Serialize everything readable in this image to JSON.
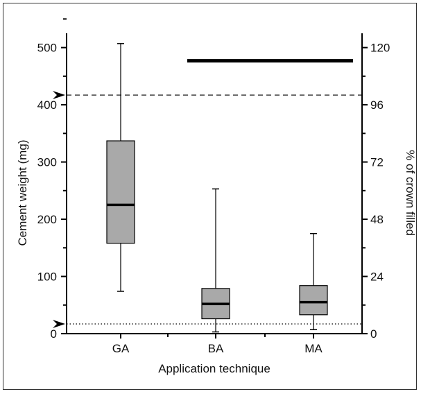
{
  "chart_data": {
    "type": "box",
    "title": "",
    "xlabel": "Application technique",
    "ylabel": "Cement weight (mg)",
    "y2label": "% of crown filled",
    "categories": [
      "GA",
      "BA",
      "MA"
    ],
    "ylim": [
      0,
      520
    ],
    "y2lim": [
      0,
      124.8
    ],
    "yticks": [
      0,
      100,
      200,
      300,
      400,
      500
    ],
    "y2ticks": [
      0,
      24,
      48,
      72,
      96,
      120
    ],
    "boxes": [
      {
        "category": "GA",
        "min": 74,
        "q1": 158,
        "median": 225,
        "q3": 337,
        "max": 507
      },
      {
        "category": "BA",
        "min": 3,
        "q1": 26,
        "median": 52,
        "q3": 79,
        "max": 253
      },
      {
        "category": "MA",
        "min": 7,
        "q1": 33,
        "median": 55,
        "q3": 84,
        "max": 175
      }
    ],
    "reference_lines": [
      {
        "value": 417,
        "style": "dashed",
        "marker": "arrowhead"
      },
      {
        "value": 17,
        "style": "dotted",
        "marker": "arrowhead"
      }
    ],
    "significance_bar": {
      "from": "BA",
      "to": "MA",
      "value": 477
    },
    "grid": false,
    "legend": "none",
    "colors": {
      "box_fill": "#a9a9a9",
      "line": "#000000"
    }
  }
}
